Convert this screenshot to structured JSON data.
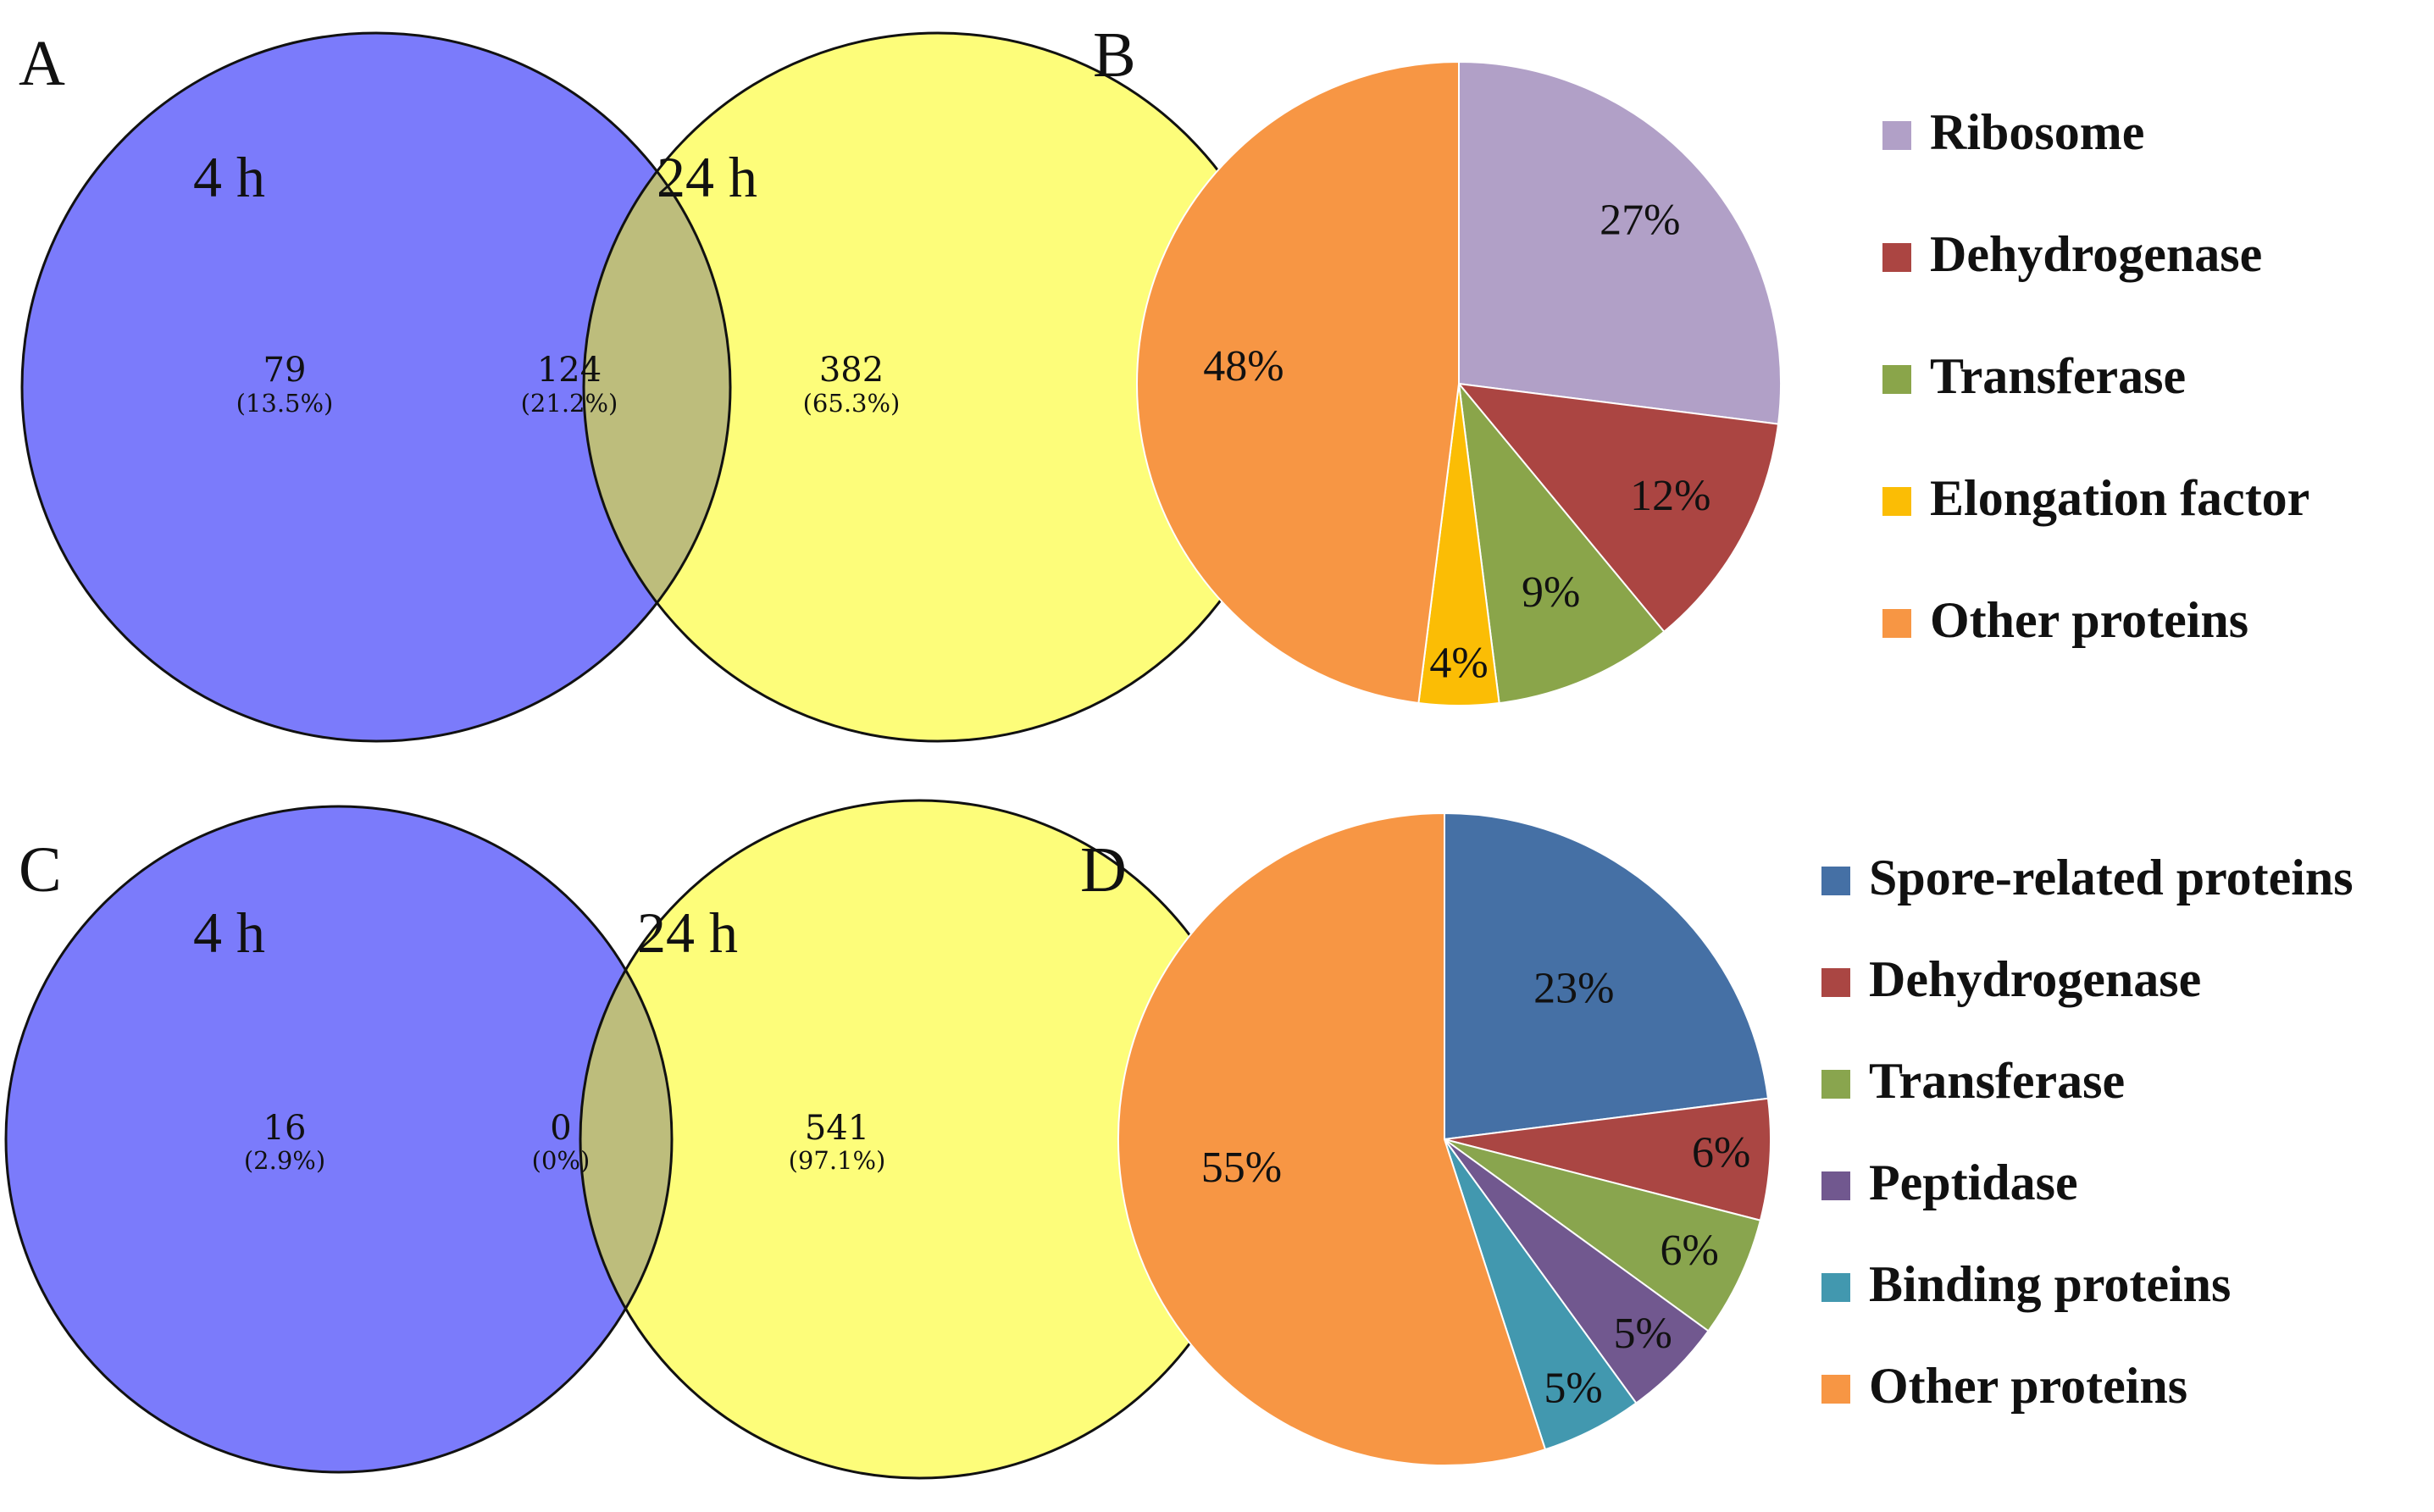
{
  "chart_data": [
    {
      "panel": "A",
      "type": "venn",
      "sets": [
        {
          "name": "4 h",
          "color": "#7b7bfb"
        },
        {
          "name": "24 h",
          "color": "#fdfd7a"
        }
      ],
      "overlap_color": "#bdbd7c",
      "regions": [
        {
          "region": "4 h only",
          "count": "79",
          "percent": "(13.5%)"
        },
        {
          "region": "both",
          "count": "124",
          "percent": "(21.2%)"
        },
        {
          "region": "24 h only",
          "count": "382",
          "percent": "(65.3%)"
        }
      ]
    },
    {
      "panel": "B",
      "type": "pie",
      "slices": [
        {
          "label": "Ribosome",
          "value": 27,
          "text": "27%",
          "color": "#b1a0c7"
        },
        {
          "label": "Dehydrogenase",
          "value": 12,
          "text": "12%",
          "color": "#ab4542"
        },
        {
          "label": "Transferase",
          "value": 9,
          "text": "9%",
          "color": "#8aa54a"
        },
        {
          "label": "Elongation factor",
          "value": 4,
          "text": "4%",
          "color": "#fbbd05"
        },
        {
          "label": "Other proteins",
          "value": 48,
          "text": "48%",
          "color": "#f79644"
        }
      ],
      "legend_position": "right"
    },
    {
      "panel": "C",
      "type": "venn",
      "sets": [
        {
          "name": "4 h",
          "color": "#7b7bfb"
        },
        {
          "name": "24 h",
          "color": "#fdfd7a"
        }
      ],
      "overlap_color": "#bdbd7c",
      "regions": [
        {
          "region": "4 h only",
          "count": "16",
          "percent": "(2.9%)"
        },
        {
          "region": "both",
          "count": "0",
          "percent": "(0%)"
        },
        {
          "region": "24 h only",
          "count": "541",
          "percent": "(97.1%)"
        }
      ]
    },
    {
      "panel": "D",
      "type": "pie",
      "slices": [
        {
          "label": "Spore-related proteins",
          "value": 23,
          "text": "23%",
          "color": "#4570a5"
        },
        {
          "label": "Dehydrogenase",
          "value": 6,
          "text": "6%",
          "color": "#aa4643"
        },
        {
          "label": "Transferase",
          "value": 6,
          "text": "6%",
          "color": "#89a54e"
        },
        {
          "label": "Peptidase",
          "value": 5,
          "text": "5%",
          "color": "#71588f"
        },
        {
          "label": "Binding proteins",
          "value": 5,
          "text": "5%",
          "color": "#4298af"
        },
        {
          "label": "Other proteins",
          "value": 55,
          "text": "55%",
          "color": "#f79644"
        }
      ],
      "legend_position": "right"
    }
  ]
}
